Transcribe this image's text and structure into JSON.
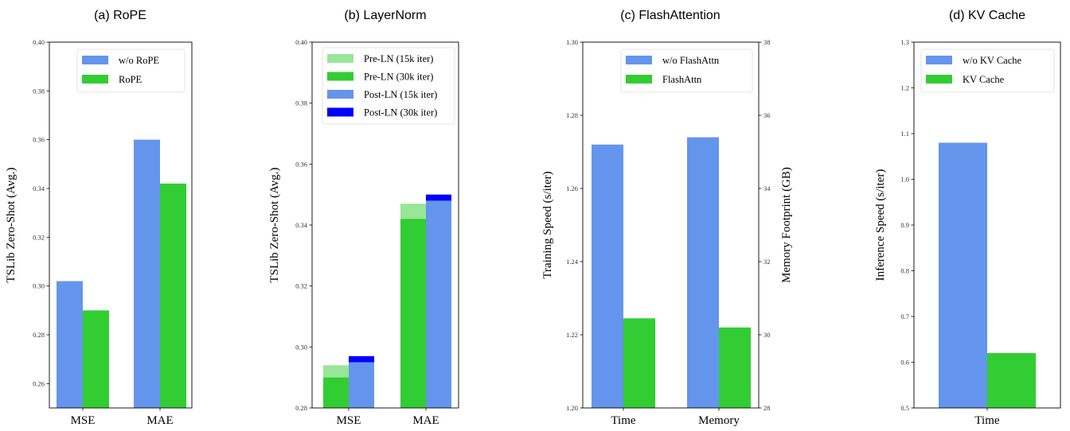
{
  "chart_data": [
    {
      "type": "bar",
      "title": "(a) RoPE",
      "ylabel": "TSLib Zero-Shot (Avg.)",
      "ylim": [
        0.25,
        0.4
      ],
      "yticks": [
        "0.26",
        "0.28",
        "0.30",
        "0.32",
        "0.34",
        "0.36",
        "0.38",
        "0.40"
      ],
      "categories": [
        "MSE",
        "MAE"
      ],
      "legend": "top-right",
      "series": [
        {
          "name": "w/o RoPE",
          "values": [
            0.302,
            0.36
          ],
          "color": "#6495ED"
        },
        {
          "name": "RoPE",
          "values": [
            0.29,
            0.342
          ],
          "color": "#32CD32"
        }
      ]
    },
    {
      "type": "bar",
      "title": "(b) LayerNorm",
      "ylabel": "TSLib Zero-Shot (Avg.)",
      "ylim": [
        0.28,
        0.4
      ],
      "yticks": [
        "0.28",
        "0.30",
        "0.32",
        "0.34",
        "0.36",
        "0.38",
        "0.40"
      ],
      "categories": [
        "MSE",
        "MAE"
      ],
      "legend": "top-right",
      "overlay": true,
      "series": [
        {
          "name": "Pre-LN (15k iter)",
          "group": "Pre-LN",
          "values": [
            0.294,
            0.347
          ],
          "color": "#98E698"
        },
        {
          "name": "Pre-LN (30k iter)",
          "group": "Pre-LN",
          "values": [
            0.29,
            0.342
          ],
          "color": "#32CD32"
        },
        {
          "name": "Post-LN (15k iter)",
          "group": "Post-LN",
          "values": [
            0.295,
            0.348
          ],
          "color": "#6495ED"
        },
        {
          "name": "Post-LN (30k iter)",
          "group": "Post-LN",
          "values": [
            0.297,
            0.35
          ],
          "color": "#0000FF"
        }
      ]
    },
    {
      "type": "bar",
      "title": "(c) FlashAttention",
      "ylabel": "Training Speed (s/iter)",
      "ylim": [
        1.2,
        1.3
      ],
      "yticks": [
        "1.20",
        "1.22",
        "1.24",
        "1.26",
        "1.28",
        "1.30"
      ],
      "y2label": "Memory Footprint (GB)",
      "y2lim": [
        28,
        38
      ],
      "y2ticks": [
        "28",
        "30",
        "32",
        "34",
        "36",
        "38"
      ],
      "categories": [
        "Time",
        "Memory"
      ],
      "category_axis": [
        "left",
        "right"
      ],
      "legend": "top-right",
      "series": [
        {
          "name": "w/o FlashAttn",
          "values": [
            1.272,
            35.4
          ],
          "color": "#6495ED"
        },
        {
          "name": "FlashAttn",
          "values": [
            1.2245,
            30.2
          ],
          "color": "#32CD32"
        }
      ]
    },
    {
      "type": "bar",
      "title": "(d) KV Cache",
      "ylabel": "Inference Speed (s/iter)",
      "ylim": [
        0.5,
        1.3
      ],
      "yticks": [
        "0.5",
        "0.6",
        "0.7",
        "0.8",
        "0.9",
        "1.0",
        "1.1",
        "1.2",
        "1.3"
      ],
      "categories": [
        "Time"
      ],
      "legend": "top-right",
      "series": [
        {
          "name": "w/o KV Cache",
          "values": [
            1.08
          ],
          "color": "#6495ED"
        },
        {
          "name": "KV Cache",
          "values": [
            0.62
          ],
          "color": "#32CD32"
        }
      ]
    }
  ]
}
